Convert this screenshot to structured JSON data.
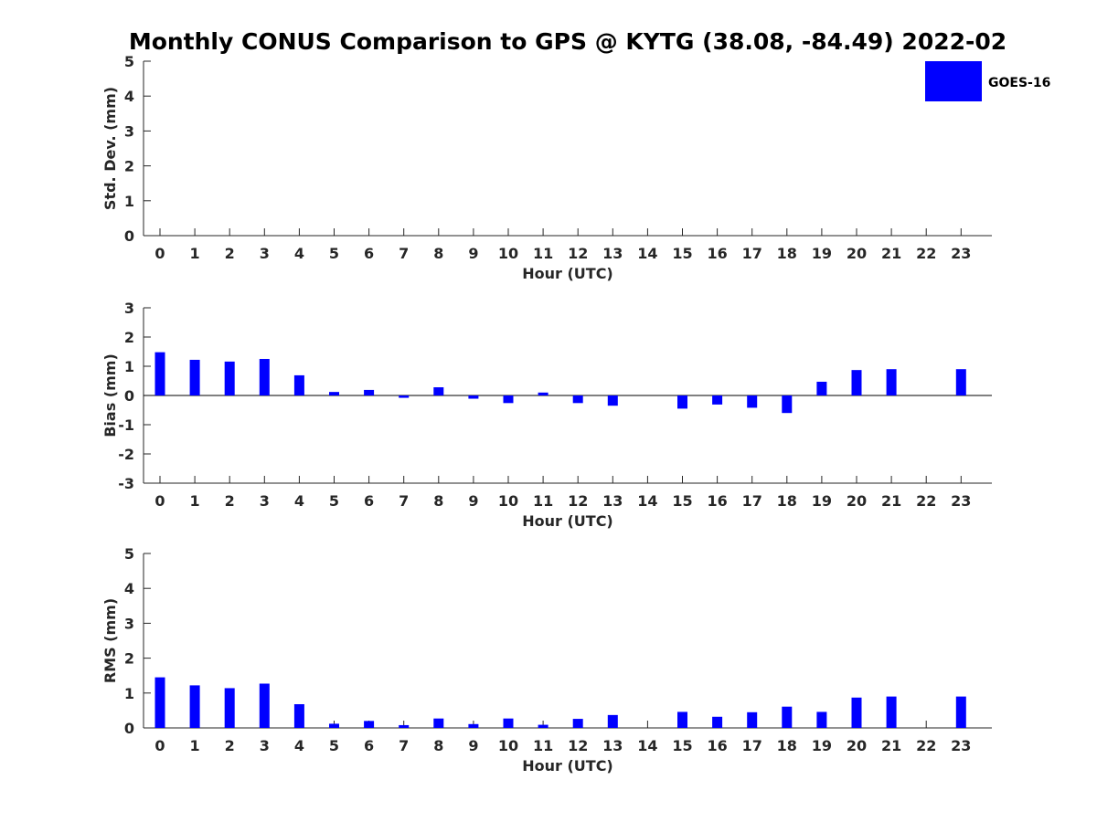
{
  "title": "Monthly CONUS Comparison to GPS @ KYTG (38.08, -84.49) 2022-02",
  "legend": {
    "label": "GOES-16",
    "color": "#0000ff",
    "placement": "top-right"
  },
  "chart_data": [
    {
      "type": "bar",
      "ylabel": "Std. Dev. (mm)",
      "xlabel": "Hour (UTC)",
      "ylim": [
        0,
        5
      ],
      "yticks": [
        "0",
        "1",
        "2",
        "3",
        "4",
        "5"
      ],
      "categories": [
        "0",
        "1",
        "2",
        "3",
        "4",
        "5",
        "6",
        "7",
        "8",
        "9",
        "10",
        "11",
        "12",
        "13",
        "14",
        "15",
        "16",
        "17",
        "18",
        "19",
        "20",
        "21",
        "22",
        "23"
      ],
      "series": [
        {
          "name": "GOES-16",
          "values": [
            null,
            null,
            null,
            null,
            null,
            null,
            null,
            null,
            null,
            null,
            null,
            null,
            null,
            null,
            null,
            null,
            null,
            null,
            null,
            null,
            null,
            null,
            null,
            null
          ]
        }
      ]
    },
    {
      "type": "bar",
      "ylabel": "Bias (mm)",
      "xlabel": "Hour (UTC)",
      "ylim": [
        -3,
        3
      ],
      "yticks": [
        "-3",
        "-2",
        "-1",
        "0",
        "1",
        "2",
        "3"
      ],
      "categories": [
        "0",
        "1",
        "2",
        "3",
        "4",
        "5",
        "6",
        "7",
        "8",
        "9",
        "10",
        "11",
        "12",
        "13",
        "14",
        "15",
        "16",
        "17",
        "18",
        "19",
        "20",
        "21",
        "22",
        "23"
      ],
      "series": [
        {
          "name": "GOES-16",
          "values": [
            1.48,
            1.22,
            1.16,
            1.25,
            0.69,
            0.12,
            0.19,
            -0.08,
            0.28,
            -0.11,
            -0.26,
            0.1,
            -0.26,
            -0.35,
            null,
            -0.45,
            -0.31,
            -0.42,
            -0.6,
            0.47,
            0.87,
            0.9,
            null,
            0.9
          ]
        }
      ]
    },
    {
      "type": "bar",
      "ylabel": "RMS (mm)",
      "xlabel": "Hour (UTC)",
      "ylim": [
        0,
        5
      ],
      "yticks": [
        "0",
        "1",
        "2",
        "3",
        "4",
        "5"
      ],
      "categories": [
        "0",
        "1",
        "2",
        "3",
        "4",
        "5",
        "6",
        "7",
        "8",
        "9",
        "10",
        "11",
        "12",
        "13",
        "14",
        "15",
        "16",
        "17",
        "18",
        "19",
        "20",
        "21",
        "22",
        "23"
      ],
      "series": [
        {
          "name": "GOES-16",
          "values": [
            1.45,
            1.22,
            1.14,
            1.27,
            0.68,
            0.12,
            0.2,
            0.08,
            0.27,
            0.11,
            0.27,
            0.09,
            0.26,
            0.37,
            null,
            0.46,
            0.32,
            0.45,
            0.61,
            0.46,
            0.87,
            0.9,
            null,
            0.9
          ]
        }
      ]
    }
  ]
}
